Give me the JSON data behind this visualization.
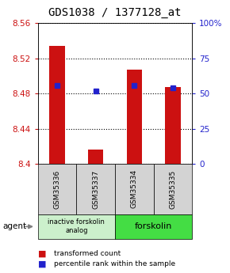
{
  "title": "GDS1038 / 1377128_at",
  "samples": [
    "GSM35336",
    "GSM35337",
    "GSM35334",
    "GSM35335"
  ],
  "bar_values": [
    8.534,
    8.416,
    8.507,
    8.487
  ],
  "bar_base": 8.4,
  "percentile_values": [
    56,
    52,
    56,
    54
  ],
  "ylim": [
    8.4,
    8.56
  ],
  "y_ticks": [
    8.4,
    8.44,
    8.48,
    8.52,
    8.56
  ],
  "y2_ticks": [
    0,
    25,
    50,
    75,
    100
  ],
  "y2_tick_labels": [
    "0",
    "25",
    "50",
    "75",
    "100%"
  ],
  "bar_color": "#cc1111",
  "percentile_color": "#2222cc",
  "grid_color": "#000000",
  "bg_color": "#ffffff",
  "plot_bg": "#ffffff",
  "agent_label": "agent",
  "group1_label": "inactive forskolin\nanalog",
  "group2_label": "forskolin",
  "group1_color": "#ccf0cc",
  "group2_color": "#44dd44",
  "sample_bg_color": "#d3d3d3",
  "legend_red_label": "transformed count",
  "legend_blue_label": "percentile rank within the sample",
  "title_fontsize": 10,
  "tick_fontsize": 7.5,
  "label_fontsize": 7
}
